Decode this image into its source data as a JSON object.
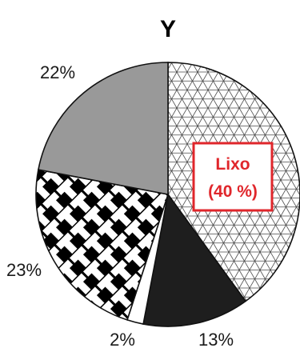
{
  "chart_data": {
    "type": "pie",
    "title": "Y",
    "slices": [
      {
        "label": "Lixo",
        "value": 40,
        "display": "(40 %)",
        "pattern": "triangles",
        "color": "#ffffff"
      },
      {
        "label": "",
        "value": 13,
        "display": "13%",
        "pattern": "solid",
        "color": "#1e1e1e"
      },
      {
        "label": "",
        "value": 2,
        "display": "2%",
        "pattern": "solid",
        "color": "#ffffff"
      },
      {
        "label": "",
        "value": 23,
        "display": "23%",
        "pattern": "basketweave",
        "color": "#ffffff"
      },
      {
        "label": "",
        "value": 22,
        "display": "22%",
        "pattern": "solid",
        "color": "#999999"
      }
    ],
    "start_angle_deg": 0,
    "direction": "clockwise",
    "callout": {
      "slice_label": "Lixo",
      "value_text": "(40 %)",
      "border_color": "#e0262b",
      "text_color": "#e0262b"
    },
    "legend": "none"
  }
}
